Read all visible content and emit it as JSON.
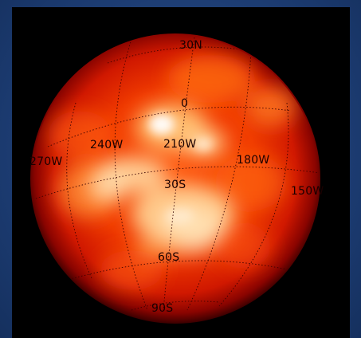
{
  "image": {
    "frame_color": "#1c3a6e",
    "background_color": "#000000",
    "subject_colors": {
      "limb": "#6a0000",
      "body": "#e01e00",
      "warm": "#ff6a10",
      "bright": "#ffd8a0",
      "hotspot": "#ffffff"
    },
    "gridline_color": "#3a0000"
  },
  "grid_labels": {
    "lat_30n": "30N",
    "lat_0": "0",
    "lat_30s": "30S",
    "lat_60s": "60S",
    "lat_90s": "90S",
    "lon_270w": "270W",
    "lon_240w": "240W",
    "lon_210w": "210W",
    "lon_180w": "180W",
    "lon_150w": "150W"
  }
}
